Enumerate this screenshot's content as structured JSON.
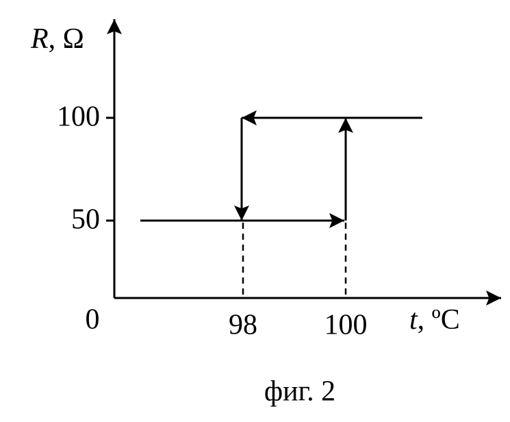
{
  "y_axis_label": {
    "symbol": "R",
    "unit": ", Ω"
  },
  "x_axis_label": {
    "symbol": "t",
    "unit": ", ºC"
  },
  "origin_label": "0",
  "y_ticks": [
    "100",
    "50"
  ],
  "x_ticks": [
    "98",
    "100"
  ],
  "caption": "фиг. 2"
}
